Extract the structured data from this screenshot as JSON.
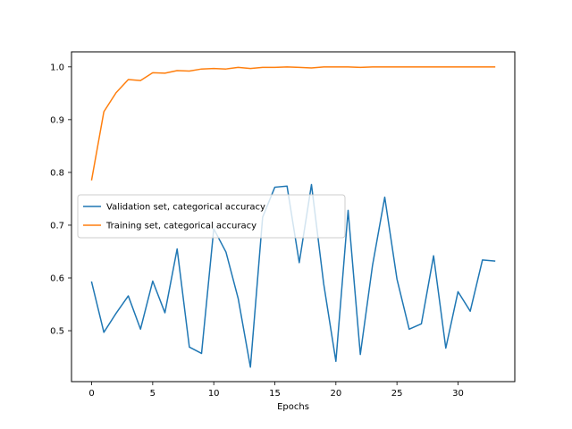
{
  "chart_data": {
    "type": "line",
    "xlabel": "Epochs",
    "ylabel": "",
    "xlim": [
      -1.65,
      34.65
    ],
    "ylim": [
      0.4035,
      1.0285
    ],
    "xticks": [
      0,
      5,
      10,
      15,
      20,
      25,
      30
    ],
    "yticks": [
      0.5,
      0.6,
      0.7,
      0.8,
      0.9,
      1.0
    ],
    "ytick_labels": [
      "0.5",
      "0.6",
      "0.7",
      "0.8",
      "0.9",
      "1.0"
    ],
    "grid": false,
    "legend_placement": "center-left",
    "x": [
      0,
      1,
      2,
      3,
      4,
      5,
      6,
      7,
      8,
      9,
      10,
      11,
      12,
      13,
      14,
      15,
      16,
      17,
      18,
      19,
      20,
      21,
      22,
      23,
      24,
      25,
      26,
      27,
      28,
      29,
      30,
      31,
      32,
      33
    ],
    "series": [
      {
        "name": "Validation set, categorical accuracy",
        "color": "#1f77b4",
        "values": [
          0.592,
          0.497,
          0.533,
          0.566,
          0.503,
          0.594,
          0.534,
          0.655,
          0.469,
          0.457,
          0.693,
          0.649,
          0.561,
          0.431,
          0.715,
          0.772,
          0.774,
          0.629,
          0.777,
          0.589,
          0.442,
          0.728,
          0.455,
          0.624,
          0.753,
          0.598,
          0.503,
          0.513,
          0.642,
          0.467,
          0.574,
          0.537,
          0.634,
          0.632
        ]
      },
      {
        "name": "Training set, categorical accuracy",
        "color": "#ff7f0e",
        "values": [
          0.786,
          0.915,
          0.951,
          0.976,
          0.974,
          0.989,
          0.988,
          0.993,
          0.992,
          0.996,
          0.997,
          0.996,
          0.999,
          0.997,
          0.999,
          0.999,
          1.0,
          0.999,
          0.998,
          1.0,
          1.0,
          1.0,
          0.999,
          1.0,
          1.0,
          1.0,
          1.0,
          1.0,
          1.0,
          1.0,
          1.0,
          1.0,
          1.0,
          1.0
        ]
      }
    ]
  }
}
